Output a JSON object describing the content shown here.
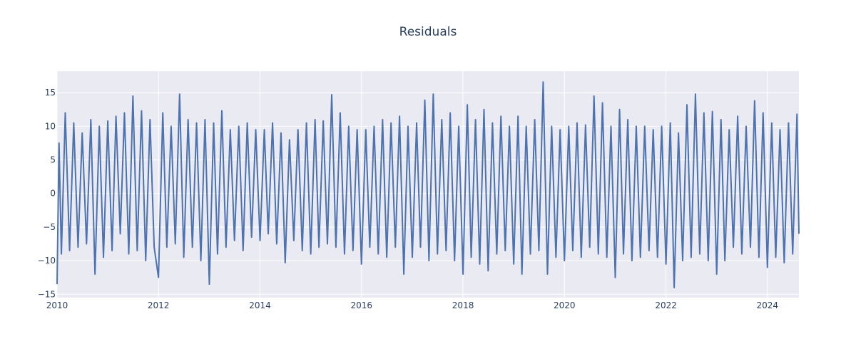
{
  "chart_data": {
    "type": "line",
    "title": "Residuals",
    "xlabel": "",
    "ylabel": "",
    "x_range": [
      "2010-01-01",
      "2024-08-15"
    ],
    "ylim": [
      -15.5,
      18.2
    ],
    "x_ticks": [
      "2010",
      "2012",
      "2014",
      "2016",
      "2018",
      "2020",
      "2022",
      "2024"
    ],
    "y_ticks": [
      -15,
      -10,
      -5,
      0,
      5,
      10,
      15
    ],
    "y_tick_labels": [
      "−15",
      "−10",
      "−5",
      "0",
      "5",
      "10",
      "15"
    ],
    "grid": true,
    "legend": "none",
    "colors": {
      "series": "#4c72b0",
      "plot_bg": "#eaeaf2",
      "grid": "#ffffff",
      "text": "#2a3f5f"
    },
    "series": [
      {
        "x": [
          "2010-01-01",
          "2010-01-15",
          "2010-02-01",
          "2010-03-01",
          "2010-04-01",
          "2010-05-01",
          "2010-06-01",
          "2010-07-01",
          "2010-08-01",
          "2010-09-01",
          "2010-10-01",
          "2010-11-01",
          "2010-12-01",
          "2011-01-01",
          "2011-02-01",
          "2011-03-01",
          "2011-04-01",
          "2011-05-01",
          "2011-06-01",
          "2011-07-01",
          "2011-08-01",
          "2011-09-01",
          "2011-10-01",
          "2011-11-01",
          "2011-12-01",
          "2012-01-01",
          "2012-02-01",
          "2012-03-01",
          "2012-04-01",
          "2012-05-01",
          "2012-06-01",
          "2012-07-01",
          "2012-08-01",
          "2012-09-01",
          "2012-10-01",
          "2012-11-01",
          "2012-12-01",
          "2013-01-01",
          "2013-02-01",
          "2013-03-01",
          "2013-04-01",
          "2013-05-01",
          "2013-06-01",
          "2013-07-01",
          "2013-08-01",
          "2013-09-01",
          "2013-10-01",
          "2013-11-01",
          "2013-12-01",
          "2014-01-01",
          "2014-02-01",
          "2014-03-01",
          "2014-04-01",
          "2014-05-01",
          "2014-06-01",
          "2014-07-01",
          "2014-08-01",
          "2014-09-01",
          "2014-10-01",
          "2014-11-01",
          "2014-12-01",
          "2015-01-01",
          "2015-02-01",
          "2015-03-01",
          "2015-04-01",
          "2015-05-01",
          "2015-06-01",
          "2015-07-01",
          "2015-08-01",
          "2015-09-01",
          "2015-10-01",
          "2015-11-01",
          "2015-12-01",
          "2016-01-01",
          "2016-02-01",
          "2016-03-01",
          "2016-04-01",
          "2016-05-01",
          "2016-06-01",
          "2016-07-01",
          "2016-08-01",
          "2016-09-01",
          "2016-10-01",
          "2016-11-01",
          "2016-12-01",
          "2017-01-01",
          "2017-02-01",
          "2017-03-01",
          "2017-04-01",
          "2017-05-01",
          "2017-06-01",
          "2017-07-01",
          "2017-08-01",
          "2017-09-01",
          "2017-10-01",
          "2017-11-01",
          "2017-12-01",
          "2018-01-01",
          "2018-02-01",
          "2018-03-01",
          "2018-04-01",
          "2018-05-01",
          "2018-06-01",
          "2018-07-01",
          "2018-08-01",
          "2018-09-01",
          "2018-10-01",
          "2018-11-01",
          "2018-12-01",
          "2019-01-01",
          "2019-02-01",
          "2019-03-01",
          "2019-04-01",
          "2019-05-01",
          "2019-06-01",
          "2019-07-01",
          "2019-08-01",
          "2019-09-01",
          "2019-10-01",
          "2019-11-01",
          "2019-12-01",
          "2020-01-01",
          "2020-02-01",
          "2020-03-01",
          "2020-04-01",
          "2020-05-01",
          "2020-06-01",
          "2020-07-01",
          "2020-08-01",
          "2020-09-01",
          "2020-10-01",
          "2020-11-01",
          "2020-12-01",
          "2021-01-01",
          "2021-02-01",
          "2021-03-01",
          "2021-04-01",
          "2021-05-01",
          "2021-06-01",
          "2021-07-01",
          "2021-08-01",
          "2021-09-01",
          "2021-10-01",
          "2021-11-01",
          "2021-12-01",
          "2022-01-01",
          "2022-02-01",
          "2022-03-01",
          "2022-04-01",
          "2022-05-01",
          "2022-06-01",
          "2022-07-01",
          "2022-08-01",
          "2022-09-01",
          "2022-10-01",
          "2022-11-01",
          "2022-12-01",
          "2023-01-01",
          "2023-02-01",
          "2023-03-01",
          "2023-04-01",
          "2023-05-01",
          "2023-06-01",
          "2023-07-01",
          "2023-08-01",
          "2023-09-01",
          "2023-10-01",
          "2023-11-01",
          "2023-12-01",
          "2024-01-01",
          "2024-02-01",
          "2024-03-01",
          "2024-04-01",
          "2024-05-01",
          "2024-06-01",
          "2024-07-01",
          "2024-08-01",
          "2024-08-15"
        ],
        "y": [
          -13.5,
          7.5,
          -9.0,
          12.0,
          -8.5,
          10.5,
          -8.0,
          9.0,
          -7.5,
          11.0,
          -12.0,
          10.0,
          -9.5,
          10.8,
          -8.5,
          11.5,
          -6.0,
          12.0,
          -9.0,
          14.5,
          -8.5,
          12.3,
          -10.0,
          11.0,
          -8.0,
          -12.5,
          12.0,
          -8.0,
          10.0,
          -7.5,
          14.8,
          -9.5,
          11.0,
          -8.0,
          10.5,
          -10.0,
          11.0,
          -13.5,
          10.5,
          -9.0,
          12.3,
          -8.0,
          9.5,
          -7.0,
          10.0,
          -8.5,
          10.5,
          -6.5,
          9.5,
          -7.0,
          9.5,
          -6.0,
          10.5,
          -7.5,
          9.0,
          -10.3,
          8.0,
          -7.0,
          9.5,
          -8.5,
          10.5,
          -9.0,
          11.0,
          -8.0,
          10.8,
          -7.5,
          14.7,
          -8.0,
          12.0,
          -9.0,
          10.0,
          -8.5,
          9.5,
          -10.5,
          9.5,
          -8.0,
          10.0,
          -9.0,
          11.0,
          -9.5,
          10.5,
          -8.0,
          11.5,
          -12.0,
          10.0,
          -9.5,
          10.5,
          -8.0,
          13.9,
          -10.0,
          14.8,
          -9.0,
          11.0,
          -8.5,
          12.0,
          -10.0,
          10.0,
          -12.0,
          13.2,
          -9.5,
          11.0,
          -10.5,
          12.5,
          -11.5,
          10.5,
          -9.0,
          11.5,
          -8.5,
          10.0,
          -10.5,
          11.5,
          -12.0,
          10.0,
          -9.0,
          11.0,
          -8.5,
          16.6,
          -12.0,
          10.0,
          -9.5,
          9.5,
          -10.0,
          10.0,
          -8.5,
          10.5,
          -9.5,
          10.2,
          -8.0,
          14.5,
          -9.0,
          13.5,
          -9.5,
          10.0,
          -12.5,
          12.5,
          -9.0,
          11.0,
          -10.0,
          10.0,
          -9.5,
          10.0,
          -8.5,
          9.5,
          -9.5,
          10.0,
          -10.5,
          10.5,
          -14.0,
          9.0,
          -10.0,
          13.2,
          -9.5,
          14.8,
          -9.0,
          12.0,
          -10.0,
          12.2,
          -12.0,
          11.0,
          -10.0,
          9.5,
          -8.0,
          11.5,
          -9.0,
          10.0,
          -8.0,
          13.8,
          -9.5,
          12.0,
          -11.0,
          10.5,
          -9.5,
          9.5,
          -10.3,
          10.5,
          -9.0,
          11.8,
          -6.0
        ]
      }
    ]
  }
}
